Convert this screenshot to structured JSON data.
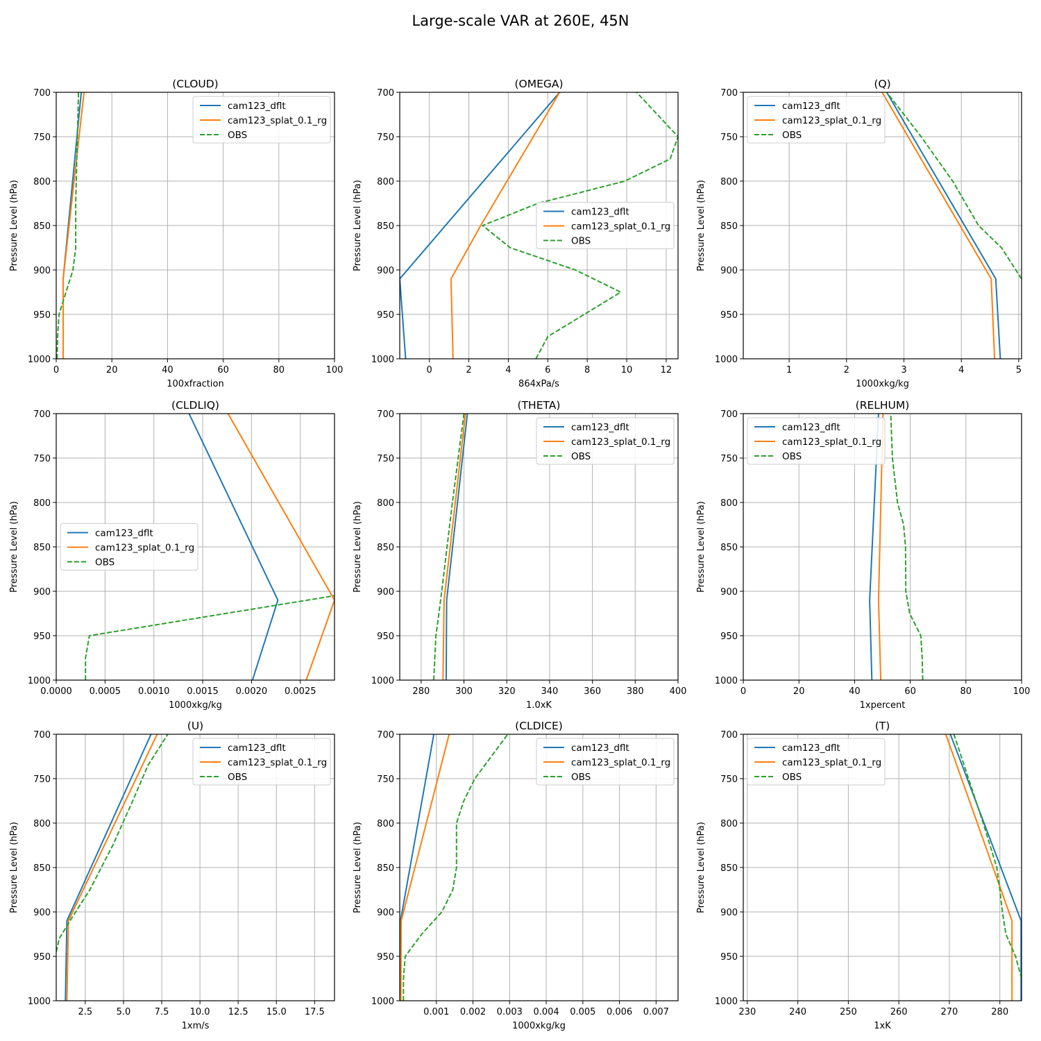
{
  "figure": {
    "title": "Large-scale VAR at 260E, 45N"
  },
  "colors": {
    "cam123_dflt": "#1f77b4",
    "cam123_splat_0.1_rg": "#ff7f0e",
    "OBS": "#2ca02c",
    "grid": "#b0b0b0"
  },
  "chart_data": [
    {
      "type": "line",
      "title": "(CLOUD)",
      "xlabel": "100xfraction",
      "ylabel": "Pressure Level (hPa)",
      "xlim": [
        0,
        100
      ],
      "ylim": [
        1000,
        700
      ],
      "xticks": [
        "0",
        "20",
        "40",
        "60",
        "80",
        "100"
      ],
      "yticks": [
        "700",
        "750",
        "800",
        "850",
        "900",
        "950",
        "1000"
      ],
      "legend": "upper right",
      "series": [
        {
          "name": "cam123_dflt",
          "style": "solid",
          "x": [
            2.5,
            2.5,
            9
          ],
          "y": [
            1000,
            910,
            700
          ]
        },
        {
          "name": "cam123_splat_0.1_rg",
          "style": "solid",
          "x": [
            2.5,
            2.5,
            10
          ],
          "y": [
            1000,
            910,
            700
          ]
        },
        {
          "name": "OBS",
          "style": "dashed",
          "x": [
            0.3,
            0.5,
            1,
            6,
            7,
            7,
            8
          ],
          "y": [
            1000,
            975,
            950,
            900,
            875,
            825,
            700
          ]
        }
      ]
    },
    {
      "type": "line",
      "title": "(OMEGA)",
      "xlabel": "864xPa/s",
      "ylabel": "Pressure Level (hPa)",
      "xlim": [
        -1.5,
        12.6
      ],
      "ylim": [
        1000,
        700
      ],
      "xticks": [
        "0",
        "2",
        "4",
        "6",
        "8",
        "10",
        "12"
      ],
      "yticks": [
        "700",
        "750",
        "800",
        "850",
        "900",
        "950",
        "1000"
      ],
      "legend": "center right",
      "series": [
        {
          "name": "cam123_dflt",
          "style": "solid",
          "x": [
            -1.2,
            -1.5,
            6.6
          ],
          "y": [
            1000,
            910,
            700
          ]
        },
        {
          "name": "cam123_splat_0.1_rg",
          "style": "solid",
          "x": [
            1.2,
            1.1,
            2.6,
            6.6
          ],
          "y": [
            1000,
            910,
            850,
            700
          ]
        },
        {
          "name": "OBS",
          "style": "dashed",
          "x": [
            5.4,
            6.0,
            9.7,
            7.4,
            4.1,
            2.7,
            5.5,
            9.9,
            12.2,
            12.6,
            10.5
          ],
          "y": [
            1000,
            975,
            925,
            900,
            875,
            850,
            825,
            800,
            775,
            750,
            700
          ]
        }
      ]
    },
    {
      "type": "line",
      "title": "(Q)",
      "xlabel": "1000xkg/kg",
      "ylabel": "Pressure Level (hPa)",
      "xlim": [
        0.2,
        5.05
      ],
      "ylim": [
        1000,
        700
      ],
      "xticks": [
        "1",
        "2",
        "3",
        "4",
        "5"
      ],
      "yticks": [
        "700",
        "750",
        "800",
        "850",
        "900",
        "950",
        "1000"
      ],
      "legend": "upper left",
      "series": [
        {
          "name": "cam123_dflt",
          "style": "solid",
          "x": [
            4.68,
            4.6,
            2.7
          ],
          "y": [
            1000,
            910,
            700
          ]
        },
        {
          "name": "cam123_splat_0.1_rg",
          "style": "solid",
          "x": [
            4.58,
            4.52,
            2.62
          ],
          "y": [
            1000,
            910,
            700
          ]
        },
        {
          "name": "OBS",
          "style": "dashed",
          "x": [
            5.05,
            4.7,
            4.3,
            3.85,
            3.3,
            2.7
          ],
          "y": [
            910,
            875,
            850,
            800,
            750,
            700
          ]
        }
      ]
    },
    {
      "type": "line",
      "title": "(CLDLIQ)",
      "xlabel": "1000xkg/kg",
      "ylabel": "Pressure Level (hPa)",
      "xlim": [
        0.0,
        0.00285
      ],
      "ylim": [
        1000,
        700
      ],
      "xticks": [
        "0.0000",
        "0.0005",
        "0.0010",
        "0.0015",
        "0.0020",
        "0.0025"
      ],
      "yticks": [
        "700",
        "750",
        "800",
        "850",
        "900",
        "950",
        "1000"
      ],
      "legend": "center left",
      "series": [
        {
          "name": "cam123_dflt",
          "style": "solid",
          "x": [
            0.00201,
            0.00227,
            0.00136
          ],
          "y": [
            1000,
            910,
            700
          ]
        },
        {
          "name": "cam123_splat_0.1_rg",
          "style": "solid",
          "x": [
            0.00256,
            0.00285,
            0.00176
          ],
          "y": [
            1000,
            910,
            700
          ]
        },
        {
          "name": "OBS",
          "style": "dashed",
          "x": [
            0.0003,
            0.0003,
            0.00034,
            0.00285
          ],
          "y": [
            1000,
            975,
            950,
            905
          ]
        }
      ]
    },
    {
      "type": "line",
      "title": "(THETA)",
      "xlabel": "1.0xK",
      "ylabel": "Pressure Level (hPa)",
      "xlim": [
        270,
        400
      ],
      "ylim": [
        1000,
        700
      ],
      "xticks": [
        "280",
        "300",
        "320",
        "340",
        "360",
        "380",
        "400"
      ],
      "yticks": [
        "700",
        "750",
        "800",
        "850",
        "900",
        "950",
        "1000"
      ],
      "legend": "upper right",
      "series": [
        {
          "name": "cam123_dflt",
          "style": "solid",
          "x": [
            291.7,
            291.9,
            301.6
          ],
          "y": [
            1000,
            910,
            700
          ]
        },
        {
          "name": "cam123_splat_0.1_rg",
          "style": "solid",
          "x": [
            290.2,
            290.7,
            300.7
          ],
          "y": [
            1000,
            910,
            700
          ]
        },
        {
          "name": "OBS",
          "style": "dashed",
          "x": [
            285.9,
            286.9,
            288.3,
            289.6,
            294.6,
            300.0
          ],
          "y": [
            1000,
            950,
            925,
            900,
            800,
            700
          ]
        }
      ]
    },
    {
      "type": "line",
      "title": "(RELHUM)",
      "xlabel": "1xpercent",
      "ylabel": "Pressure Level (hPa)",
      "xlim": [
        0,
        100
      ],
      "ylim": [
        1000,
        700
      ],
      "xticks": [
        "0",
        "20",
        "40",
        "60",
        "80",
        "100"
      ],
      "yticks": [
        "700",
        "750",
        "800",
        "850",
        "900",
        "950",
        "1000"
      ],
      "legend": "upper left",
      "series": [
        {
          "name": "cam123_dflt",
          "style": "solid",
          "x": [
            46.2,
            45.4,
            48.6
          ],
          "y": [
            1000,
            910,
            700
          ]
        },
        {
          "name": "cam123_splat_0.1_rg",
          "style": "solid",
          "x": [
            49.4,
            48.6,
            50.2
          ],
          "y": [
            1000,
            910,
            700
          ]
        },
        {
          "name": "OBS",
          "style": "dashed",
          "x": [
            64.5,
            64.3,
            63.8,
            59.8,
            58.4,
            58.3,
            57.6,
            55.4,
            53.6,
            53.0
          ],
          "y": [
            1000,
            975,
            950,
            925,
            900,
            850,
            825,
            800,
            750,
            700
          ]
        }
      ]
    },
    {
      "type": "line",
      "title": "(U)",
      "xlabel": "1xm/s",
      "ylabel": "Pressure Level (hPa)",
      "xlim": [
        0.6,
        18.8
      ],
      "ylim": [
        1000,
        700
      ],
      "xticks": [
        "2.5",
        "5.0",
        "7.5",
        "10.0",
        "12.5",
        "15.0",
        "17.5"
      ],
      "yticks": [
        "700",
        "750",
        "800",
        "850",
        "900",
        "950",
        "1000"
      ],
      "legend": "upper right",
      "series": [
        {
          "name": "cam123_dflt",
          "style": "solid",
          "x": [
            1.2,
            1.3,
            6.8
          ],
          "y": [
            1000,
            910,
            700
          ]
        },
        {
          "name": "cam123_splat_0.1_rg",
          "style": "solid",
          "x": [
            1.3,
            1.4,
            7.2
          ],
          "y": [
            1000,
            910,
            700
          ]
        },
        {
          "name": "OBS",
          "style": "dashed",
          "x": [
            0.6,
            0.8,
            1.5,
            2.8,
            4.3,
            5.6,
            6.6,
            7.9
          ],
          "y": [
            945,
            930,
            910,
            875,
            825,
            775,
            735,
            700
          ]
        }
      ]
    },
    {
      "type": "line",
      "title": "(CLDICE)",
      "xlabel": "1000xkg/kg",
      "ylabel": "Pressure Level (hPa)",
      "xlim": [
        0.0,
        0.0076
      ],
      "ylim": [
        1000,
        700
      ],
      "xticks": [
        "0.001",
        "0.002",
        "0.003",
        "0.004",
        "0.005",
        "0.006",
        "0.007"
      ],
      "yticks": [
        "700",
        "750",
        "800",
        "850",
        "900",
        "950",
        "1000"
      ],
      "legend": "upper right",
      "series": [
        {
          "name": "cam123_dflt",
          "style": "solid",
          "x": [
            2e-05,
            2e-05,
            0.00093
          ],
          "y": [
            1000,
            910,
            700
          ]
        },
        {
          "name": "cam123_splat_0.1_rg",
          "style": "solid",
          "x": [
            3e-05,
            4e-05,
            0.00135
          ],
          "y": [
            1000,
            910,
            700
          ]
        },
        {
          "name": "OBS",
          "style": "dashed",
          "x": [
            0.0001,
            0.0001,
            0.00015,
            0.0006,
            0.00115,
            0.00145,
            0.00155,
            0.00155,
            0.00175,
            0.00205,
            0.0025,
            0.00295
          ],
          "y": [
            1000,
            975,
            950,
            925,
            900,
            875,
            850,
            800,
            775,
            750,
            725,
            700
          ]
        }
      ]
    },
    {
      "type": "line",
      "title": "(T)",
      "xlabel": "1xK",
      "ylabel": "Pressure Level (hPa)",
      "xlim": [
        229.2,
        284.3
      ],
      "ylim": [
        1000,
        700
      ],
      "xticks": [
        "230",
        "240",
        "250",
        "260",
        "270",
        "280"
      ],
      "yticks": [
        "700",
        "750",
        "800",
        "850",
        "900",
        "950",
        "1000"
      ],
      "legend": "upper left",
      "series": [
        {
          "name": "cam123_dflt",
          "style": "solid",
          "x": [
            284.2,
            284.2,
            270.2
          ],
          "y": [
            1000,
            910,
            700
          ]
        },
        {
          "name": "cam123_splat_0.1_rg",
          "style": "solid",
          "x": [
            282.4,
            282.4,
            269.3
          ],
          "y": [
            1000,
            910,
            700
          ]
        },
        {
          "name": "OBS",
          "style": "dashed",
          "x": [
            284.3,
            283.1,
            281.2,
            280.5,
            280.0,
            279.4,
            276.7,
            273.8,
            270.9
          ],
          "y": [
            975,
            950,
            925,
            900,
            875,
            850,
            800,
            750,
            700
          ]
        }
      ]
    }
  ]
}
